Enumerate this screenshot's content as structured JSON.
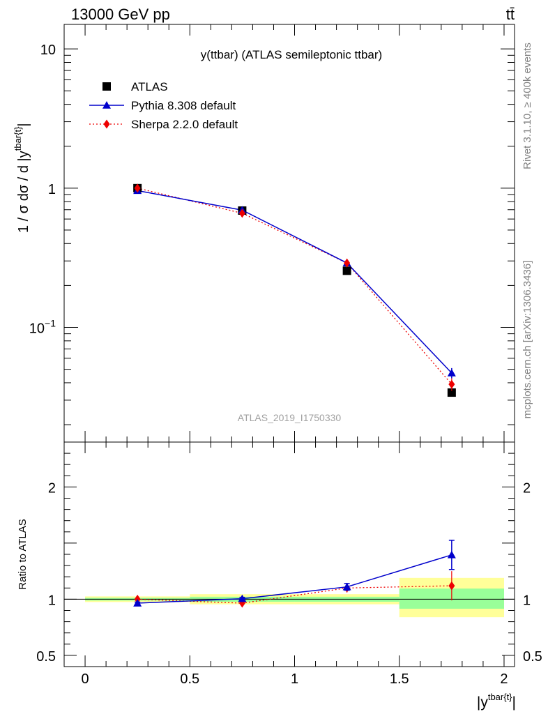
{
  "header": {
    "left": "13000 GeV pp",
    "right": "tt̄"
  },
  "side_labels": {
    "rivet": "Rivet 3.1.10, ≥ 400k events",
    "mcplots": "mcplots.cern.ch [arXiv:1306.3436]"
  },
  "chart_data": [
    {
      "type": "scatter",
      "panel": "main",
      "title": "y(ttbar) (ATLAS semileptonic ttbar)",
      "watermark": "ATLAS_2019_I1750330",
      "ylabel_main": "1 / σ dσ / d |y",
      "ylabel_sup": "tbar{t}",
      "ylabel_close": "|",
      "y_scale": "log",
      "xlim": [
        -0.1,
        2.05
      ],
      "ylim": [
        0.015,
        15
      ],
      "y_ticks": [
        {
          "value": 0.1,
          "base": "10",
          "exp": "−1"
        },
        {
          "value": 1,
          "base": "1",
          "exp": ""
        },
        {
          "value": 10,
          "base": "10",
          "exp": ""
        }
      ],
      "legend_position": "top-left",
      "series": [
        {
          "name": "ATLAS",
          "style": "data",
          "color": "#000000",
          "x": [
            0.25,
            0.75,
            1.25,
            1.75
          ],
          "y": [
            1.0,
            0.69,
            0.255,
            0.034
          ],
          "xerr": [
            0.25,
            0.25,
            0.25,
            0.25
          ]
        },
        {
          "name": "Pythia 8.308 default",
          "style": "line-triangle",
          "color": "#0000cc",
          "x": [
            0.25,
            0.75,
            1.25,
            1.75
          ],
          "y": [
            0.96,
            0.695,
            0.29,
            0.047
          ],
          "yerr": [
            0.01,
            0.008,
            0.005,
            0.004
          ]
        },
        {
          "name": "Sherpa 2.2.0 default",
          "style": "dotted-diamond",
          "color": "#ee0000",
          "x": [
            0.25,
            0.75,
            1.25,
            1.75
          ],
          "y": [
            1.0,
            0.66,
            0.29,
            0.039
          ],
          "yerr": [
            0.012,
            0.01,
            0.006,
            0.004
          ]
        }
      ]
    },
    {
      "type": "scatter",
      "panel": "ratio",
      "ylabel": "Ratio to ATLAS",
      "xlabel_main": "|y",
      "xlabel_sup": "tbar{t}",
      "xlabel_close": "|",
      "xlim": [
        -0.1,
        2.05
      ],
      "ylim": [
        0.4,
        2.4
      ],
      "x_ticks": [
        {
          "value": 0,
          "label": "0"
        },
        {
          "value": 0.5,
          "label": "0.5"
        },
        {
          "value": 1,
          "label": "1"
        },
        {
          "value": 1.5,
          "label": "1.5"
        },
        {
          "value": 2,
          "label": "2"
        }
      ],
      "y_ticks": [
        {
          "value": 0.5,
          "label": "0.5"
        },
        {
          "value": 1,
          "label": "1"
        },
        {
          "value": 2,
          "label": "2"
        }
      ],
      "bands": [
        {
          "x_lo": 0.0,
          "x_hi": 0.5,
          "yellow": [
            0.975,
            1.025
          ],
          "green": [
            0.988,
            1.012
          ]
        },
        {
          "x_lo": 0.5,
          "x_hi": 1.0,
          "yellow": [
            0.955,
            1.045
          ],
          "green": [
            0.978,
            1.022
          ]
        },
        {
          "x_lo": 1.0,
          "x_hi": 1.5,
          "yellow": [
            0.955,
            1.045
          ],
          "green": [
            0.978,
            1.022
          ]
        },
        {
          "x_lo": 1.5,
          "x_hi": 2.0,
          "yellow": [
            0.84,
            1.19
          ],
          "green": [
            0.915,
            1.095
          ]
        }
      ],
      "band_colors": {
        "yellow": "#ffff99",
        "green": "#99ff99"
      },
      "series": [
        {
          "name": "Pythia 8.308 default",
          "color": "#0000cc",
          "x": [
            0.25,
            0.75,
            1.25,
            1.75
          ],
          "y": [
            0.965,
            1.005,
            1.11,
            1.395
          ],
          "yerr": [
            0.01,
            0.012,
            0.03,
            0.13
          ]
        },
        {
          "name": "Sherpa 2.2.0 default",
          "color": "#ee0000",
          "x": [
            0.25,
            0.75,
            1.25,
            1.75
          ],
          "y": [
            1.0,
            0.965,
            1.1,
            1.12
          ],
          "yerr": [
            0.015,
            0.02,
            0.04,
            0.13
          ]
        }
      ]
    }
  ]
}
